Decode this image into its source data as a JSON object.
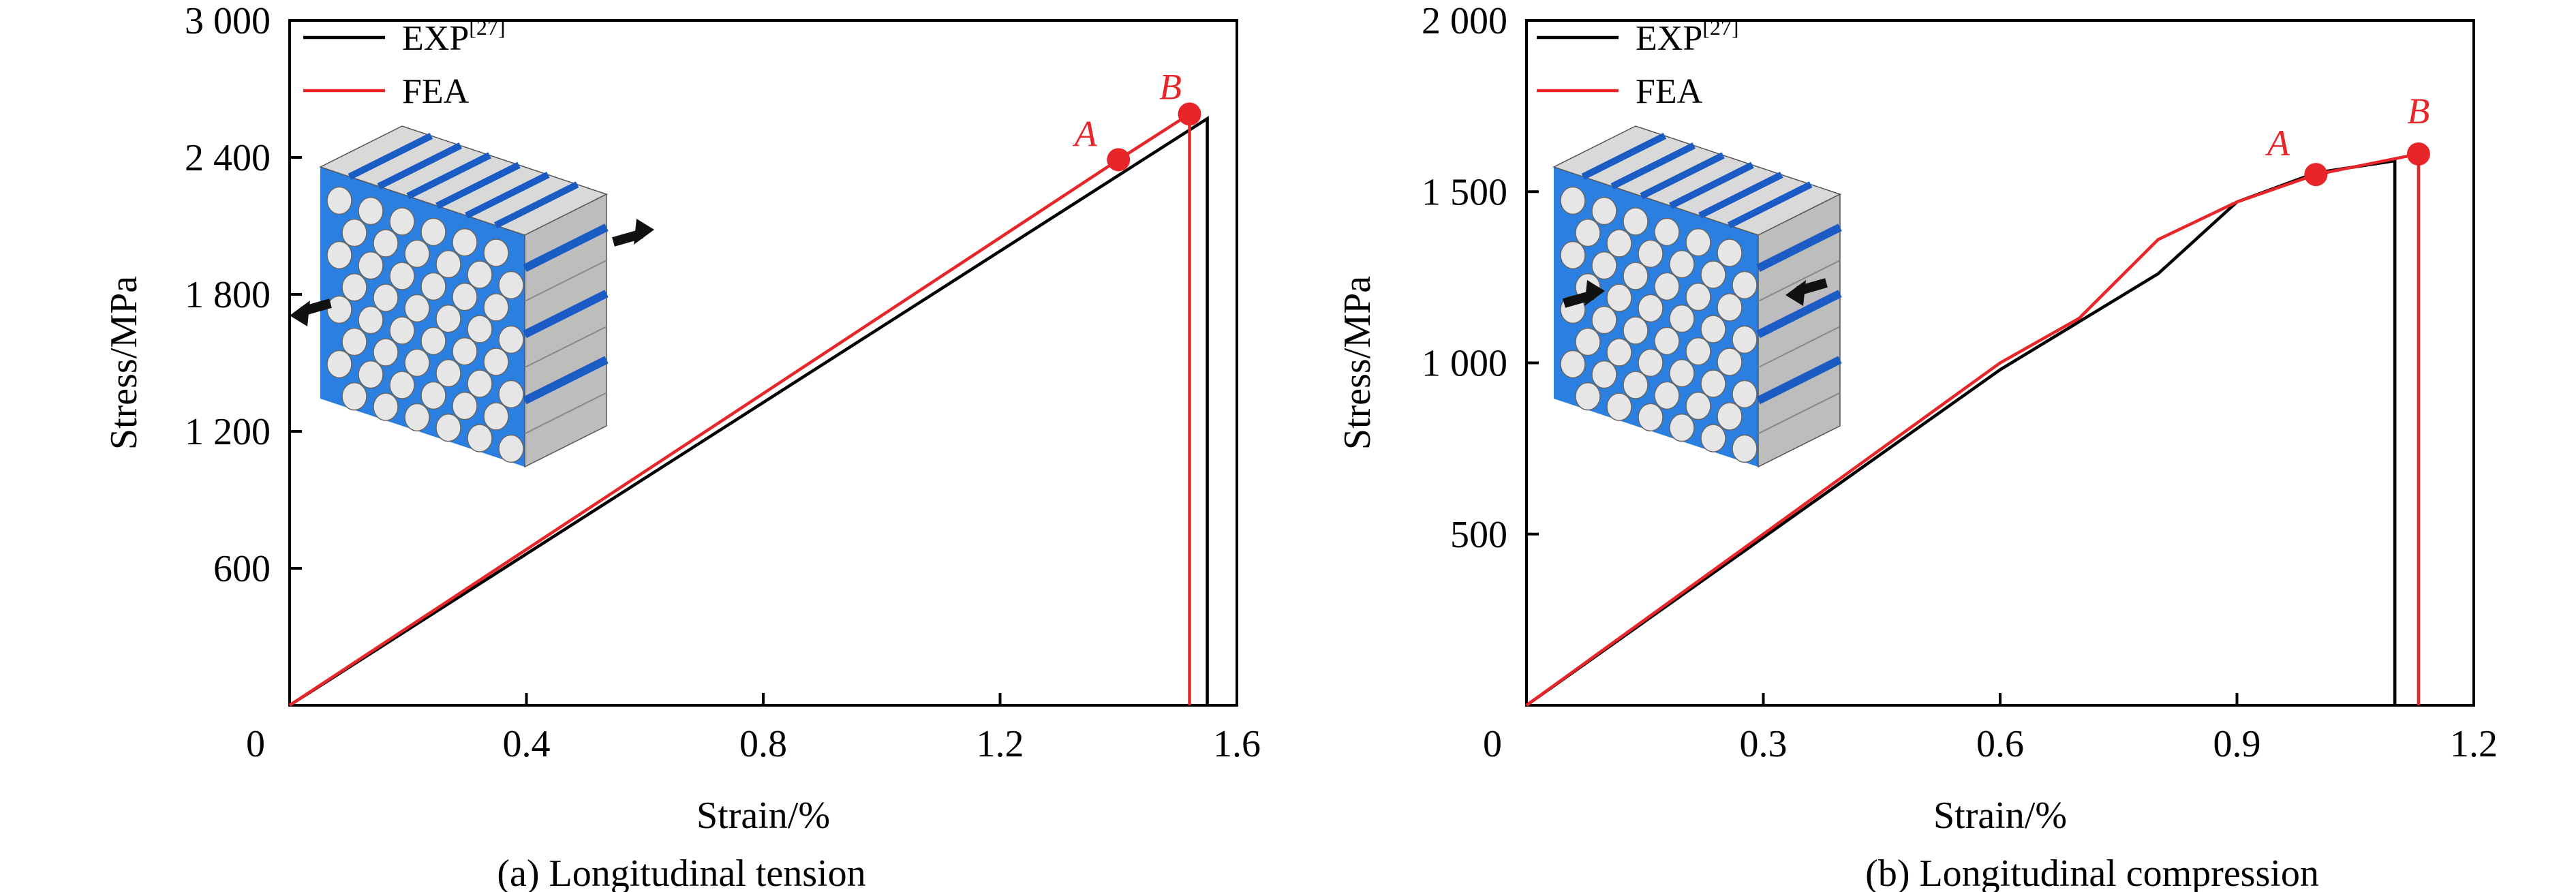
{
  "colors": {
    "exp": "#000000",
    "fea": "#e8262a",
    "composite_blue": "#2b7fe0",
    "composite_dark": "#1a5cc4",
    "fiber": "#e6e6e6"
  },
  "chart_data": [
    {
      "type": "line",
      "caption": "(a) Longitudinal tension",
      "xlabel": "Strain/%",
      "ylabel": "Stress/MPa",
      "xlim": [
        0,
        1.6
      ],
      "ylim": [
        0,
        3000
      ],
      "xticks": [
        0,
        0.4,
        0.8,
        1.2,
        1.6
      ],
      "xtick_labels": [
        "0",
        "0.4",
        "0.8",
        "1.2",
        "1.6"
      ],
      "yticks": [
        600,
        1200,
        1800,
        2400,
        3000
      ],
      "ytick_labels": [
        "600",
        "1 200",
        "1 800",
        "2 400",
        "3 000"
      ],
      "legend": {
        "position": "top-left",
        "entries": [
          {
            "series": "EXP",
            "text": "EXP",
            "sup": "[27]"
          },
          {
            "series": "FEA",
            "text": "FEA",
            "sup": ""
          }
        ]
      },
      "series": [
        {
          "name": "EXP",
          "x": [
            0,
            1.55,
            1.55
          ],
          "y": [
            0,
            2570,
            0
          ]
        },
        {
          "name": "FEA",
          "x": [
            0,
            1.4,
            1.52,
            1.52
          ],
          "y": [
            0,
            2390,
            2590,
            0
          ]
        }
      ],
      "points": [
        {
          "label": "A",
          "x": 1.4,
          "y": 2390
        },
        {
          "label": "B",
          "x": 1.52,
          "y": 2590
        }
      ],
      "inset_load": "tension"
    },
    {
      "type": "line",
      "caption": "(b) Longitudinal compression",
      "xlabel": "Strain/%",
      "ylabel": "Stress/MPa",
      "xlim": [
        0,
        1.2
      ],
      "ylim": [
        0,
        2000
      ],
      "xticks": [
        0,
        0.3,
        0.6,
        0.9,
        1.2
      ],
      "xtick_labels": [
        "0",
        "0.3",
        "0.6",
        "0.9",
        "1.2"
      ],
      "yticks": [
        500,
        1000,
        1500,
        2000
      ],
      "ytick_labels": [
        "500",
        "1 000",
        "1 500",
        "2 000"
      ],
      "legend": {
        "position": "top-left",
        "entries": [
          {
            "series": "EXP",
            "text": "EXP",
            "sup": "[27]"
          },
          {
            "series": "FEA",
            "text": "FEA",
            "sup": ""
          }
        ]
      },
      "series": [
        {
          "name": "EXP",
          "x": [
            0,
            0.6,
            0.8,
            0.9,
            1.0,
            1.1,
            1.1
          ],
          "y": [
            0,
            980,
            1260,
            1470,
            1555,
            1590,
            0
          ]
        },
        {
          "name": "FEA",
          "x": [
            0,
            0.6,
            0.7,
            0.8,
            0.9,
            1.0,
            1.13,
            1.13
          ],
          "y": [
            0,
            1000,
            1130,
            1360,
            1470,
            1550,
            1610,
            0
          ]
        }
      ],
      "points": [
        {
          "label": "A",
          "x": 1.0,
          "y": 1550
        },
        {
          "label": "B",
          "x": 1.13,
          "y": 1610
        }
      ],
      "inset_load": "compression"
    }
  ]
}
